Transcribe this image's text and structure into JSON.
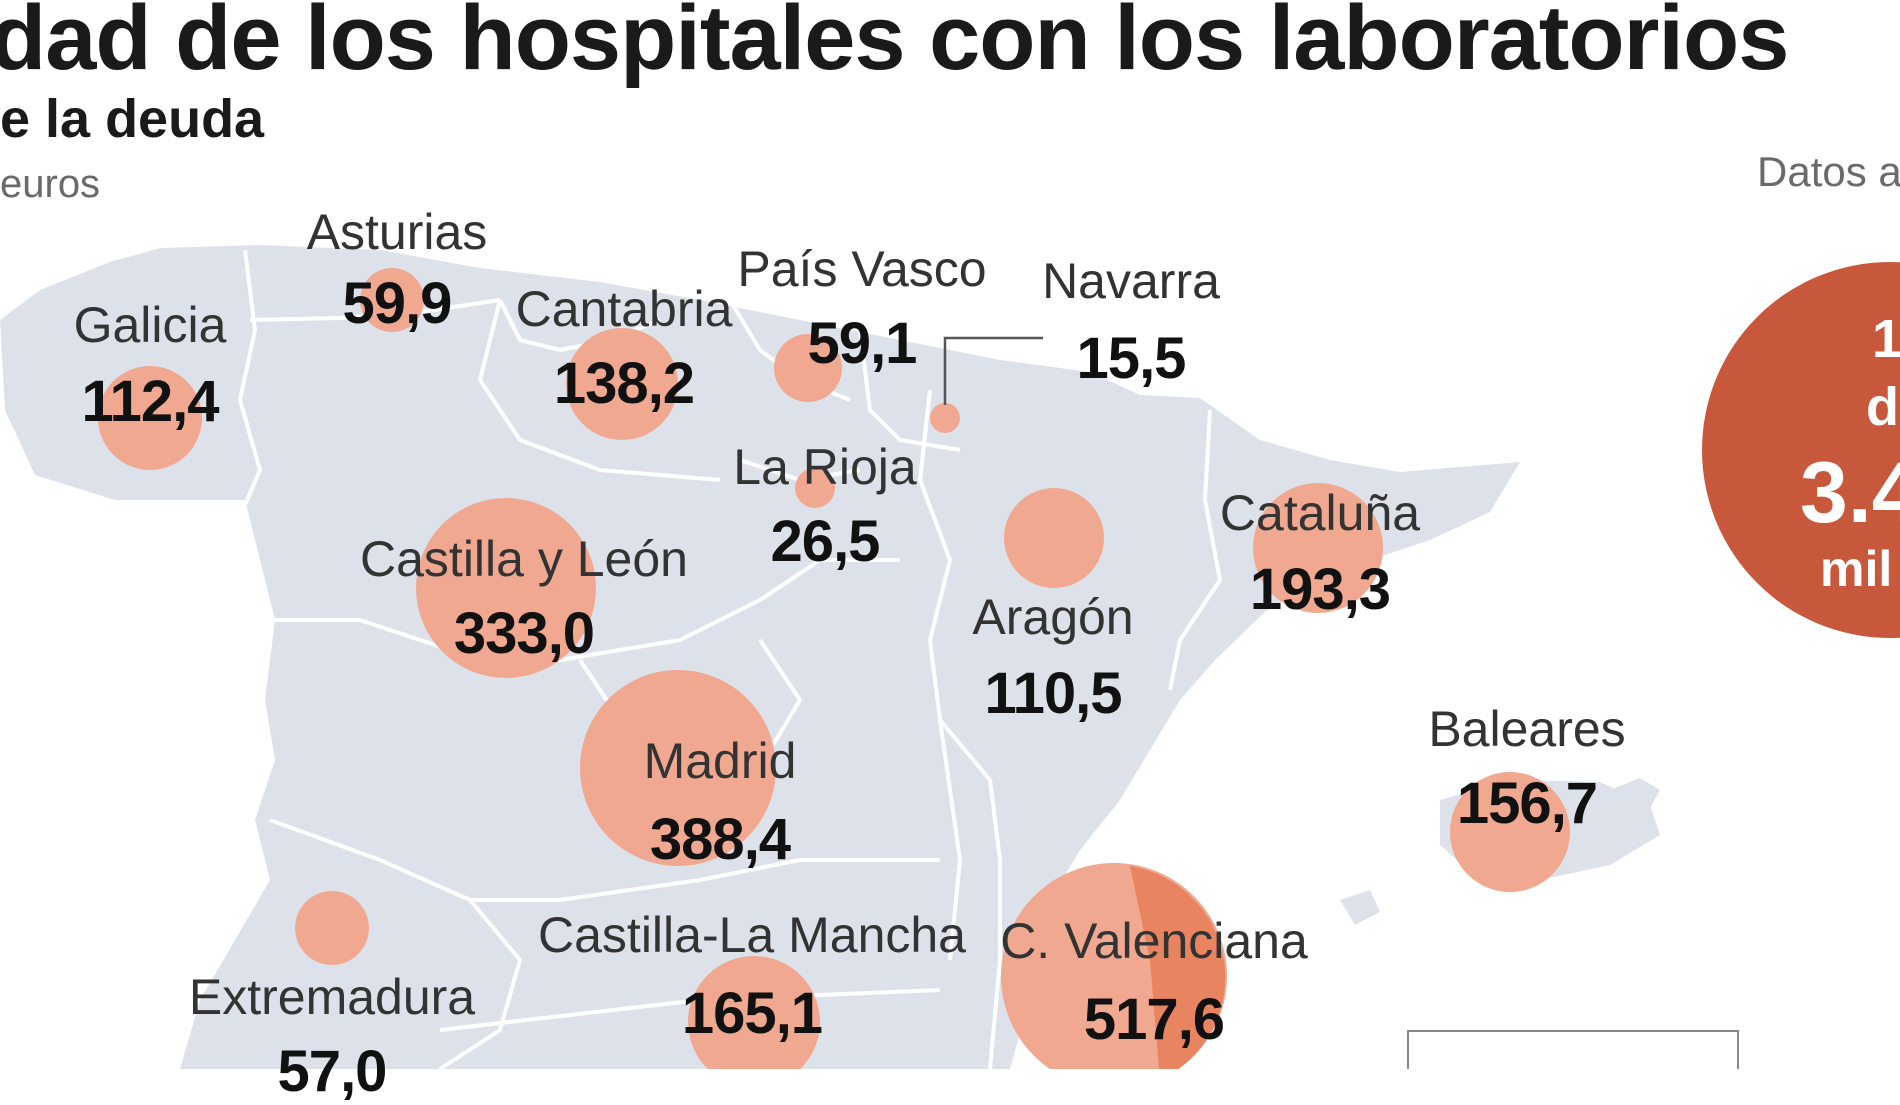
{
  "header": {
    "title": "dad de los hospitales con los laboratorios",
    "subtitle": "e la deuda",
    "unit": "euros",
    "note": "Datos a"
  },
  "colors": {
    "land": "#dde2ea",
    "border": "#ffffff",
    "bubble": "#f0a890",
    "bubble_dark": "#e8805c",
    "total": "#c8583b"
  },
  "regions": [
    {
      "id": "galicia",
      "name": "Galicia",
      "value": "112,4"
    },
    {
      "id": "asturias",
      "name": "Asturias",
      "value": "59,9"
    },
    {
      "id": "cantabria",
      "name": "Cantabria",
      "value": "138,2"
    },
    {
      "id": "pais-vasco",
      "name": "País Vasco",
      "value": "59,1"
    },
    {
      "id": "navarra",
      "name": "Navarra",
      "value": "15,5"
    },
    {
      "id": "la-rioja",
      "name": "La Rioja",
      "value": "26,5"
    },
    {
      "id": "castilla-y-leon",
      "name": "Castilla y León",
      "value": "333,0"
    },
    {
      "id": "aragon",
      "name": "Aragón",
      "value": "110,5"
    },
    {
      "id": "cataluna",
      "name": "Cataluña",
      "value": "193,3"
    },
    {
      "id": "madrid",
      "name": "Madrid",
      "value": "388,4"
    },
    {
      "id": "baleares",
      "name": "Baleares",
      "value": "156,7"
    },
    {
      "id": "extremadura",
      "name": "Extremadura",
      "value": "57,0"
    },
    {
      "id": "castilla-la-mancha",
      "name": "Castilla-La Mancha",
      "value": "165,1"
    },
    {
      "id": "c-valenciana",
      "name": "C. Valenciana",
      "value": "517,6"
    }
  ],
  "total": {
    "line1": "1",
    "line2": "d",
    "line3": "3.4",
    "line4": "mil"
  }
}
